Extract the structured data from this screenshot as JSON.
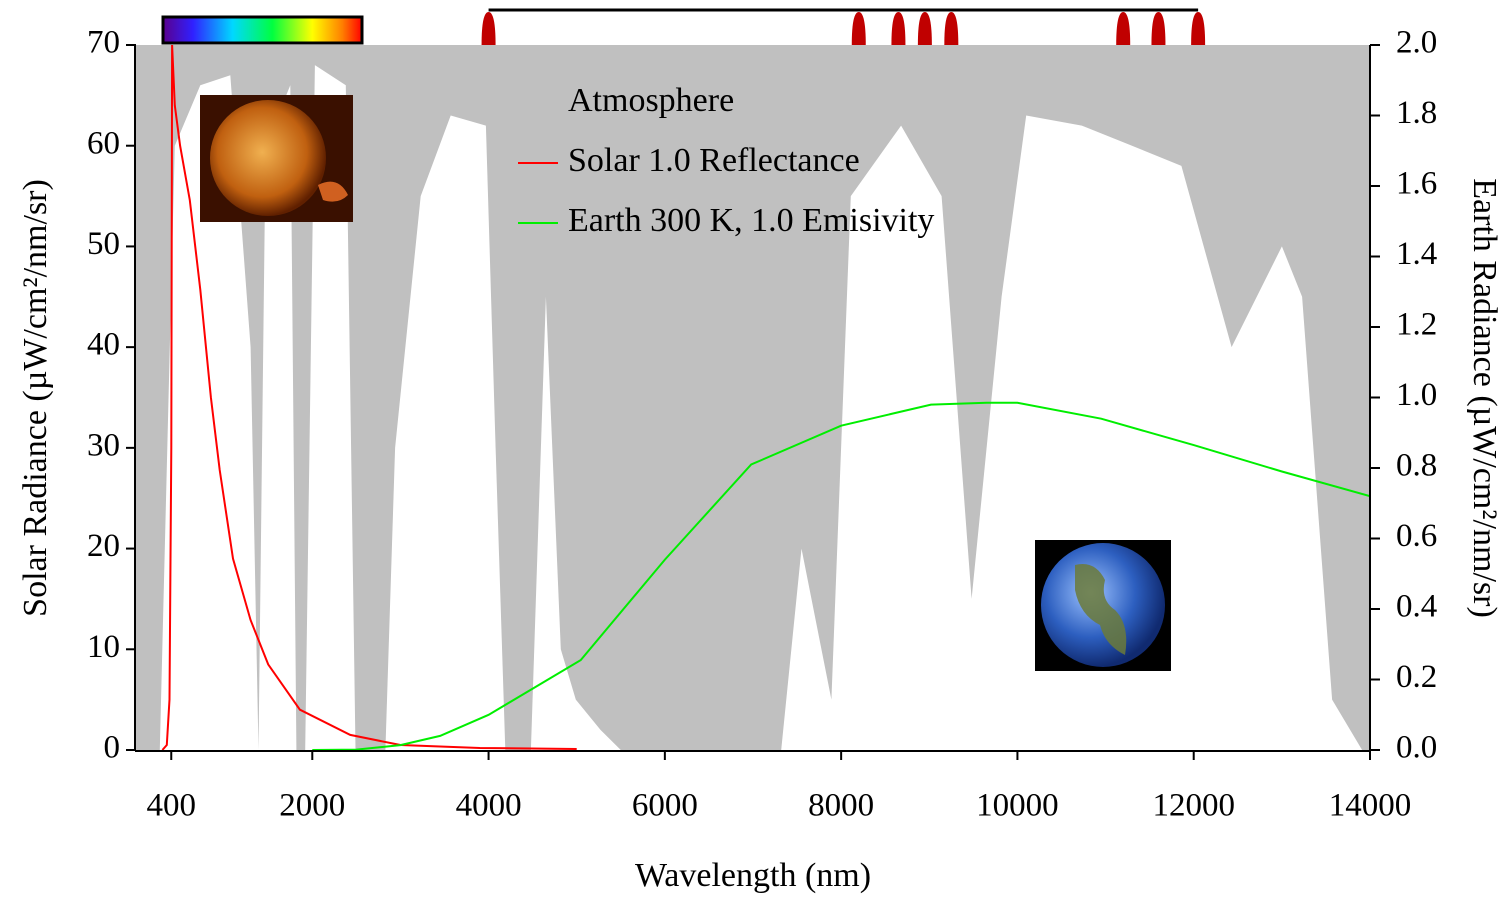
{
  "chart_data": {
    "type": "line",
    "xlabel": "Wavelength (nm)",
    "ylabel": "Solar Radiance (µW/cm²/nm/sr)",
    "y2label": "Earth Radiance (µW/cm²/nm/sr)",
    "xlim": [
      0,
      14000
    ],
    "xticks": [
      400,
      2000,
      4000,
      6000,
      8000,
      10000,
      12000,
      14000
    ],
    "ylim": [
      0,
      70
    ],
    "yticks": [
      0,
      10,
      20,
      30,
      40,
      50,
      60,
      70
    ],
    "y2lim": [
      0,
      2
    ],
    "y2ticks": [
      {
        "value": 0,
        "label": "0.0"
      },
      0.2,
      0.4,
      0.6,
      0.8,
      {
        "value": 1,
        "label": "1.0"
      },
      1.2,
      1.4,
      1.6,
      1.8,
      {
        "value": 2,
        "label": "2.0"
      }
    ],
    "bands": [
      4000,
      8200,
      8650,
      8950,
      9250,
      11200,
      11600,
      12050
    ],
    "series": [
      {
        "name": "Atmosphere",
        "type": "area",
        "color": "#c0c0c0",
        "x": [
          0,
          270,
          440,
          730,
          1070,
          1300,
          1390,
          1470,
          1750,
          1820,
          1920,
          2030,
          2380,
          2490,
          2830,
          2940,
          3230,
          3570,
          3970,
          4080,
          4190,
          4480,
          4650,
          4820,
          4990,
          5270,
          5500,
          7320,
          7550,
          7890,
          8110,
          8680,
          9140,
          9480,
          9650,
          9820,
          10100,
          10730,
          11300,
          11860,
          12430,
          13000,
          13230,
          13570,
          13910,
          14000
        ],
        "values": [
          0,
          0,
          60,
          66,
          67,
          40,
          0,
          60,
          66,
          0,
          0,
          68,
          66,
          0,
          0,
          30,
          55,
          63,
          62,
          30,
          0,
          0,
          45,
          10,
          5,
          2,
          0,
          0,
          20,
          5,
          55,
          62,
          55,
          15,
          30,
          45,
          63,
          62,
          60,
          58,
          40,
          50,
          45,
          5,
          0,
          0
        ]
      },
      {
        "name": "Solar 1.0 Reflectance",
        "type": "line",
        "color": "#ff0000",
        "x": [
          300,
          350,
          380,
          400,
          410,
          440,
          500,
          610,
          730,
          850,
          950,
          1100,
          1300,
          1500,
          1860,
          2430,
          3000,
          3900,
          5000
        ],
        "values": [
          0,
          0.5,
          5,
          30,
          70,
          64,
          60,
          54.6,
          45.7,
          35,
          27.8,
          19,
          12.9,
          8.5,
          4,
          1.5,
          0.5,
          0.2,
          0.1
        ]
      },
      {
        "name": "Earth 300 K, 1.0 Emisivity",
        "type": "line",
        "color": "#00ee00",
        "axis": "y2",
        "x": [
          2000,
          2500,
          3000,
          3450,
          4000,
          5045,
          6000,
          6980,
          8000,
          9020,
          9650,
          10000,
          10950,
          12000,
          13000,
          14000
        ],
        "values": [
          0,
          0.001,
          0.014,
          0.04,
          0.1,
          0.255,
          0.54,
          0.81,
          0.92,
          0.98,
          0.985,
          0.985,
          0.94,
          0.865,
          0.79,
          0.72
        ]
      }
    ]
  }
}
